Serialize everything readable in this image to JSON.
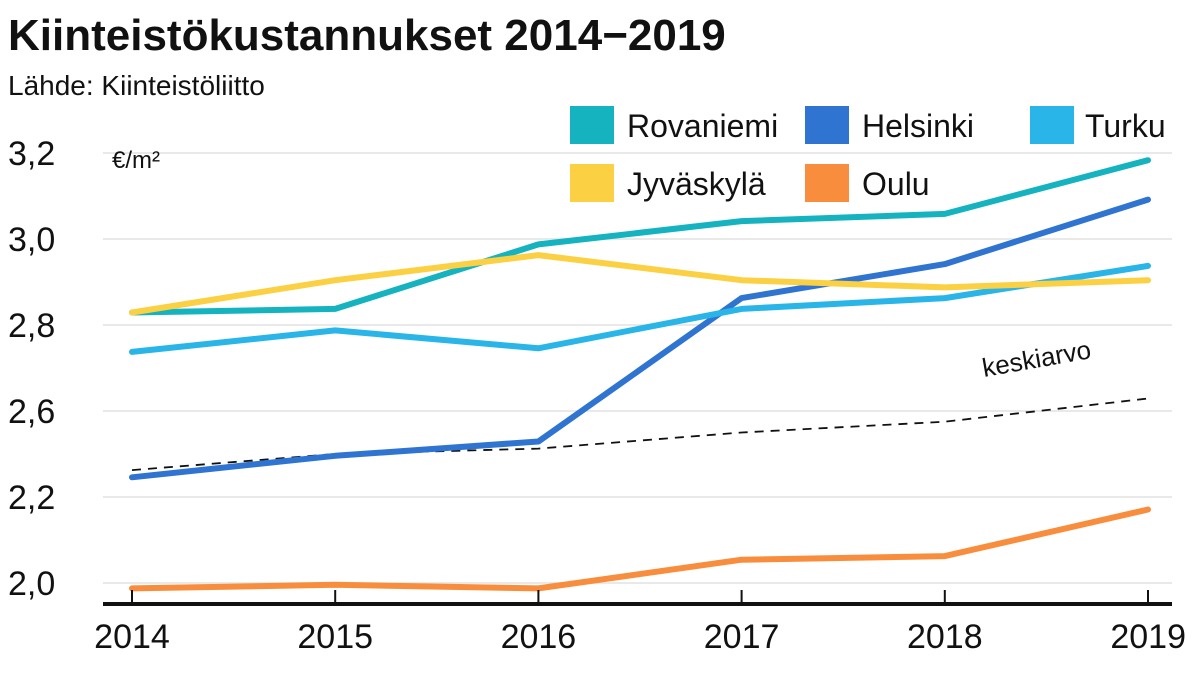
{
  "header": {
    "title": "Kiinteistökustannukset 2014−2019",
    "subtitle": "Lähde: Kiinteistöliitto"
  },
  "chart_data": {
    "type": "line",
    "title": "Kiinteistökustannukset 2014−2019",
    "subtitle": "Lähde: Kiinteistöliitto",
    "ylabel": "€/m²",
    "xlabel": "",
    "x": [
      "2014",
      "2015",
      "2016",
      "2017",
      "2018",
      "2019"
    ],
    "y_ticks": [
      "2,0",
      "2,2",
      "2,6",
      "2,8",
      "3,0",
      "3,2"
    ],
    "ylim": [
      1.98,
      3.22
    ],
    "grid": true,
    "legend_position": "top-right",
    "series": [
      {
        "name": "Rovaniemi",
        "color": "#14b3bf",
        "values": [
          2.755,
          2.765,
          2.945,
          3.01,
          3.03,
          3.18
        ]
      },
      {
        "name": "Helsinki",
        "color": "#2f74d0",
        "values": [
          2.295,
          2.355,
          2.395,
          2.795,
          2.89,
          3.07
        ]
      },
      {
        "name": "Turku",
        "color": "#29b5e8",
        "values": [
          2.645,
          2.705,
          2.655,
          2.765,
          2.795,
          2.885
        ]
      },
      {
        "name": "Jyväskylä",
        "color": "#fbd042",
        "values": [
          2.755,
          2.845,
          2.915,
          2.845,
          2.825,
          2.845
        ]
      },
      {
        "name": "Oulu",
        "color": "#f98d3e",
        "values": [
          1.985,
          1.995,
          1.985,
          2.065,
          2.075,
          2.205
        ]
      },
      {
        "name": "keskiarvo",
        "color": "#111111",
        "dashed": true,
        "values": [
          2.315,
          2.36,
          2.375,
          2.42,
          2.45,
          2.515
        ]
      }
    ],
    "annotations": [
      "keskiarvo"
    ]
  }
}
